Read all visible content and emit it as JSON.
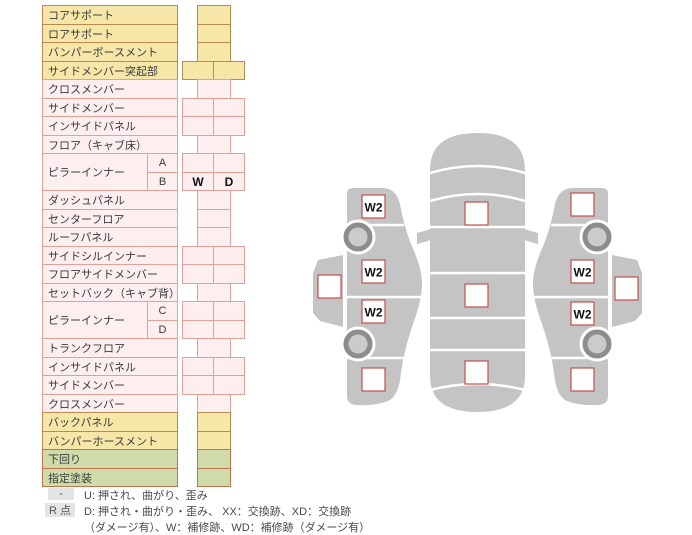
{
  "colors": {
    "row_types": {
      "yellow": {
        "bg": "#f6e7a8",
        "border": "#bc8a50"
      },
      "pink": {
        "bg": "#fdeef0",
        "border": "#e3a09a"
      },
      "green": {
        "bg": "#cfdcaa",
        "border": "#c1744a"
      }
    },
    "marker_border": "#c0504d",
    "car_body_gray": "#c4c4c4",
    "wheel_ring": "#8d8d8d",
    "wheel_hub": "#cbcbcb",
    "legend_key_bg": "#e4e4e4"
  },
  "parts_table": {
    "rows": [
      {
        "label": "コアサポート",
        "color": "yellow",
        "cell": "narrow"
      },
      {
        "label": "ロアサポート",
        "color": "yellow",
        "cell": "narrow"
      },
      {
        "label": "バンパーボースメント",
        "color": "yellow",
        "cell": "narrow"
      },
      {
        "label": "サイドメンバー突起部",
        "color": "yellow",
        "cell": "wide"
      },
      {
        "label": "クロスメンバー",
        "color": "pink",
        "cell": "narrow"
      },
      {
        "label": "サイドメンバー",
        "color": "pink",
        "cell": "wide"
      },
      {
        "label": "インサイドパネル",
        "color": "pink",
        "cell": "wide"
      },
      {
        "label": "フロア（キャブ床）",
        "color": "pink",
        "cell": "narrow"
      },
      {
        "label": "ピラーインナー",
        "sub": "A",
        "color": "pink",
        "cell": "wide",
        "group": "start"
      },
      {
        "sub": "B",
        "color": "pink",
        "cell": "wide",
        "values": [
          "W",
          "D"
        ],
        "group": "end"
      },
      {
        "label": "ダッシュパネル",
        "color": "pink",
        "cell": "narrow"
      },
      {
        "label": "センターフロア",
        "color": "pink",
        "cell": "narrow"
      },
      {
        "label": "ルーフパネル",
        "color": "pink",
        "cell": "narrow"
      },
      {
        "label": "サイドシルインナー",
        "color": "pink",
        "cell": "wide"
      },
      {
        "label": "フロアサイドメンバー",
        "color": "pink",
        "cell": "wide"
      },
      {
        "label": "セットバック（キャブ背）",
        "color": "pink",
        "cell": "narrow"
      },
      {
        "label": "ピラーインナー",
        "sub": "C",
        "color": "pink",
        "cell": "wide",
        "group": "start"
      },
      {
        "sub": "D",
        "color": "pink",
        "cell": "wide",
        "group": "end"
      },
      {
        "label": "トランクフロア",
        "color": "pink",
        "cell": "narrow"
      },
      {
        "label": "インサイドパネル",
        "color": "pink",
        "cell": "wide"
      },
      {
        "label": "サイドメンバー",
        "color": "pink",
        "cell": "wide"
      },
      {
        "label": "クロスメンバー",
        "color": "pink",
        "cell": "narrow"
      },
      {
        "label": "バックパネル",
        "color": "yellow",
        "cell": "narrow"
      },
      {
        "label": "バンパーホースメント",
        "color": "yellow",
        "cell": "narrow"
      },
      {
        "label": "下回り",
        "color": "green",
        "cell": "narrow"
      },
      {
        "label": "指定塗装",
        "color": "green",
        "cell": "narrow"
      }
    ]
  },
  "diagram": {
    "markers": {
      "left_piece": [
        ""
      ],
      "left_side": [
        "W2",
        "W2",
        "W2",
        ""
      ],
      "top_view": [
        "",
        "",
        ""
      ],
      "right_side": [
        "",
        "W2",
        "W2",
        ""
      ],
      "right_piece": [
        ""
      ]
    }
  },
  "legend": {
    "row1_key": "-",
    "row1_text": "U: 押され、曲がり、歪み",
    "row2_key": "R 点",
    "row2_text": "D: 押され・曲がり・歪み、 XX：交換跡、XD：交換跡",
    "row3_text": "（ダメージ有）、W：補修跡、WD：補修跡（ダメージ有）"
  }
}
